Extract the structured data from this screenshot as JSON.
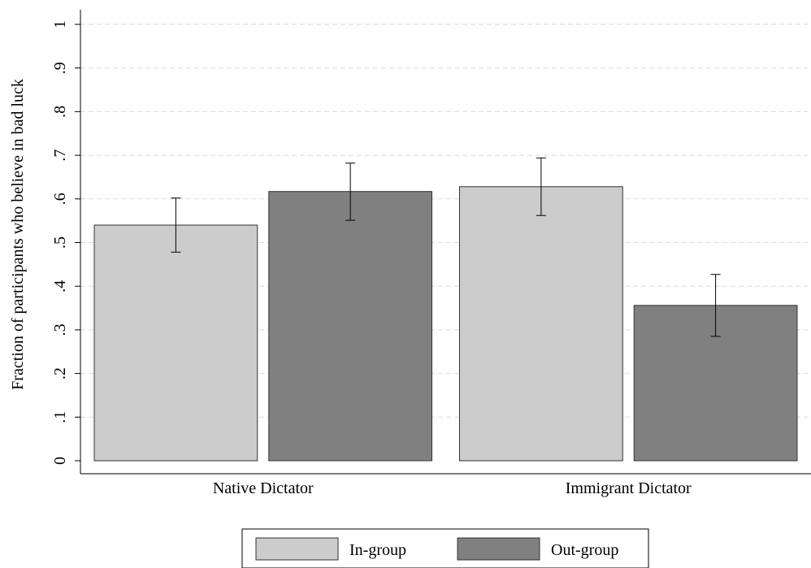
{
  "chart_data": {
    "type": "bar",
    "categories": [
      "Native Dictator",
      "Immigrant Dictator"
    ],
    "series": [
      {
        "name": "In-group",
        "values": [
          0.54,
          0.628
        ],
        "ci_low": [
          0.478,
          0.562
        ],
        "ci_high": [
          0.602,
          0.694
        ],
        "color": "#cccccc"
      },
      {
        "name": "Out-group",
        "values": [
          0.617,
          0.356
        ],
        "ci_low": [
          0.551,
          0.285
        ],
        "ci_high": [
          0.682,
          0.427
        ],
        "color": "#808080"
      }
    ],
    "ylabel": "Fraction of participants who believe in bad luck",
    "xlabel": "",
    "ylim": [
      0,
      1
    ],
    "yticks": [
      0,
      0.1,
      0.2,
      0.3,
      0.4,
      0.5,
      0.6,
      0.7,
      0.8,
      0.9,
      1
    ],
    "ytick_labels": [
      "0",
      ".1",
      ".2",
      ".3",
      ".4",
      ".5",
      ".6",
      ".7",
      ".8",
      ".9",
      "1"
    ],
    "grid": true,
    "legend_position": "bottom"
  }
}
